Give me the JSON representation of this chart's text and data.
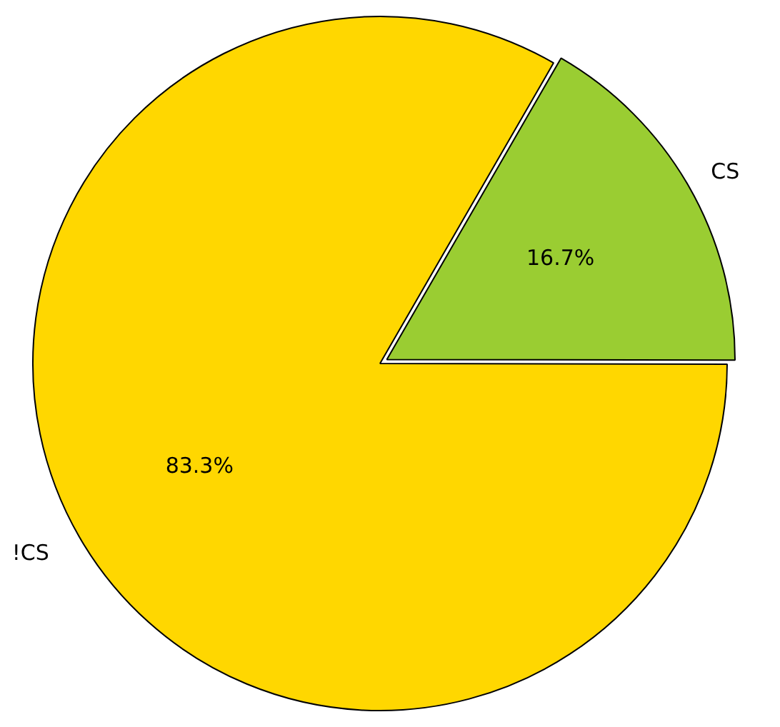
{
  "chart_data": {
    "type": "pie",
    "categories": [
      "CS",
      "!CS"
    ],
    "values": [
      16.7,
      83.3
    ],
    "colors": [
      "#9acd32",
      "#ffd700"
    ],
    "value_labels": [
      "16.7%",
      "83.3%"
    ],
    "legend": false
  }
}
